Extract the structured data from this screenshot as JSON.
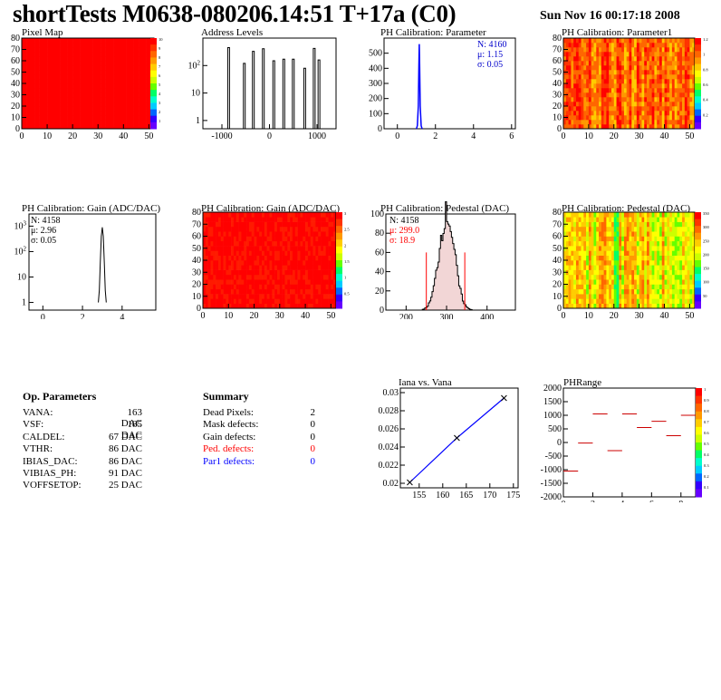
{
  "header": {
    "title": "shortTests M0638-080206.14:51 T+17a (C0)",
    "date": "Sun Nov 16 00:17:18 2008"
  },
  "colors": {
    "map_red": "#ff0000",
    "curve_blue": "#0000ff",
    "stat_red": "#ff0000",
    "stat_blue": "#0000cc",
    "ped_hatch": "#cc6666",
    "range_red": "#cc0000"
  },
  "parameters": {
    "title": "Op. Parameters",
    "rows": [
      {
        "name": "VANA:",
        "value": "163 DAC"
      },
      {
        "name": "VSF:",
        "value": "185 DAC"
      },
      {
        "name": "CALDEL:",
        "value": "67 DAC"
      },
      {
        "name": "VTHR:",
        "value": "86 DAC"
      },
      {
        "name": "IBIAS_DAC:",
        "value": "86 DAC"
      },
      {
        "name": "VIBIAS_PH:",
        "value": "91 DAC"
      },
      {
        "name": "VOFFSETOP:",
        "value": "25 DAC"
      }
    ]
  },
  "summary": {
    "title": "Summary",
    "rows": [
      {
        "name": "Dead Pixels:",
        "value": "2",
        "color": "#000000"
      },
      {
        "name": "Mask defects:",
        "value": "0",
        "color": "#000000"
      },
      {
        "name": "Gain defects:",
        "value": "0",
        "color": "#000000"
      },
      {
        "name": "Ped. defects:",
        "value": "0",
        "color": "#ff0000"
      },
      {
        "name": "Par1 defects:",
        "value": "0",
        "color": "#0000ff"
      }
    ]
  },
  "chart_data": [
    {
      "type": "heatmap",
      "title": "Pixel Map",
      "x_ticks": [
        "0",
        "10",
        "20",
        "30",
        "40",
        "50"
      ],
      "y_ticks": [
        "0",
        "10",
        "20",
        "30",
        "40",
        "50",
        "60",
        "70",
        "80"
      ],
      "xlim": [
        0,
        52
      ],
      "ylim": [
        0,
        80
      ],
      "uniform_value": 10,
      "z_ticks": [
        "10",
        "9",
        "8",
        "7",
        "6",
        "5",
        "4",
        "3",
        "2",
        "1"
      ]
    },
    {
      "type": "bar",
      "title": "Address Levels",
      "log_y": true,
      "x_ticks": [
        "-1000",
        "0",
        "1000"
      ],
      "y_ticks": [
        "1",
        "10",
        "10^2"
      ],
      "xlim": [
        -1400,
        1400
      ],
      "peaks_x": [
        -840,
        -510,
        -320,
        -110,
        110,
        320,
        520,
        760,
        960,
        1060
      ],
      "peaks_y": [
        450,
        120,
        330,
        410,
        150,
        170,
        170,
        80,
        420,
        160
      ]
    },
    {
      "type": "line",
      "title": "PH Calibration: Parameter",
      "x_ticks": [
        "0",
        "2",
        "4",
        "6"
      ],
      "y_ticks": [
        "0",
        "100",
        "200",
        "300",
        "400",
        "500"
      ],
      "xlim": [
        -0.7,
        6.2
      ],
      "ylim": [
        0,
        600
      ],
      "stats": {
        "n": "N: 4160",
        "mean": "μ: 1.15",
        "sigma": "σ: 0.05"
      },
      "x": [
        1.0,
        1.05,
        1.1,
        1.13,
        1.15,
        1.17,
        1.2,
        1.25,
        1.3
      ],
      "y": [
        0,
        20,
        150,
        420,
        560,
        420,
        150,
        20,
        0
      ]
    },
    {
      "type": "heatmap",
      "title": "PH Calibration: Parameter1",
      "x_ticks": [
        "0",
        "10",
        "20",
        "30",
        "40",
        "50"
      ],
      "y_ticks": [
        "0",
        "10",
        "20",
        "30",
        "40",
        "50",
        "60",
        "70",
        "80"
      ],
      "xlim": [
        0,
        52
      ],
      "ylim": [
        0,
        80
      ],
      "z_ticks": [
        "1.2",
        "1",
        "0.8",
        "0.6",
        "0.4",
        "0.2"
      ]
    },
    {
      "type": "line",
      "title": "PH Calibration: Gain (ADC/DAC)",
      "log_y": true,
      "x_ticks": [
        "0",
        "2",
        "4"
      ],
      "y_ticks": [
        "1",
        "10",
        "10^2",
        "10^3"
      ],
      "xlim": [
        -0.7,
        5.7
      ],
      "stats": {
        "n": "N: 4158",
        "mean": "μ: 2.96",
        "sigma": "σ: 0.05"
      },
      "x": [
        2.8,
        2.85,
        2.9,
        2.95,
        3.0,
        3.05,
        3.1,
        3.15,
        3.2
      ],
      "y": [
        1,
        3,
        40,
        400,
        900,
        400,
        40,
        3,
        1
      ]
    },
    {
      "type": "heatmap",
      "title": "PH Calibration: Gain (ADC/DAC)",
      "x_ticks": [
        "0",
        "10",
        "20",
        "30",
        "40",
        "50"
      ],
      "y_ticks": [
        "0",
        "10",
        "20",
        "30",
        "40",
        "50",
        "60",
        "70",
        "80"
      ],
      "xlim": [
        0,
        52
      ],
      "ylim": [
        0,
        80
      ],
      "z_ticks": [
        "3",
        "2.5",
        "2",
        "1.5",
        "1",
        "0.5"
      ]
    },
    {
      "type": "bar",
      "title": "PH Calibration: Pedestal (DAC)",
      "x_ticks": [
        "200",
        "300",
        "400"
      ],
      "y_ticks": [
        "0",
        "20",
        "40",
        "60",
        "80",
        "100"
      ],
      "xlim": [
        150,
        470
      ],
      "ylim": [
        0,
        100
      ],
      "stats": {
        "n": "N: 4158",
        "mean": "μ: 299.0",
        "sigma": "σ: 18.9"
      },
      "mean": 299.0,
      "sigma": 18.9,
      "peak": 100,
      "cut_lines_x": [
        250,
        345
      ],
      "cut_lines_height": 60
    },
    {
      "type": "heatmap",
      "title": "PH Calibration: Pedestal (DAC)",
      "x_ticks": [
        "0",
        "10",
        "20",
        "30",
        "40",
        "50"
      ],
      "y_ticks": [
        "0",
        "10",
        "20",
        "30",
        "40",
        "50",
        "60",
        "70",
        "80"
      ],
      "xlim": [
        0,
        52
      ],
      "ylim": [
        0,
        80
      ],
      "z_ticks": [
        "350",
        "300",
        "250",
        "200",
        "150",
        "100",
        "50"
      ]
    },
    {
      "type": "line",
      "title": "Iana vs. Vana",
      "x_ticks": [
        "155",
        "160",
        "165",
        "170",
        "175"
      ],
      "y_ticks": [
        "0.02",
        "0.022",
        "0.024",
        "0.026",
        "0.028",
        "0.03"
      ],
      "xlim": [
        151,
        176
      ],
      "ylim": [
        0.0195,
        0.0305
      ],
      "x": [
        153,
        163,
        173
      ],
      "y": [
        0.0201,
        0.025,
        0.0294
      ]
    },
    {
      "type": "scatter",
      "title": "PHRange",
      "x_ticks": [
        "0",
        "2",
        "4",
        "6",
        "8"
      ],
      "y_ticks": [
        "2000",
        "1500",
        "1000",
        "500",
        "0",
        "-500",
        "-1000",
        "-1500",
        "-2000"
      ],
      "xlim": [
        0,
        9
      ],
      "ylim": [
        -2000,
        2000
      ],
      "z_ticks": [
        "1",
        "0.9",
        "0.8",
        "0.7",
        "0.6",
        "0.5",
        "0.4",
        "0.3",
        "0.2",
        "0.1"
      ],
      "x": [
        0,
        1,
        2,
        3,
        4,
        5,
        6,
        7,
        8
      ],
      "y": [
        -1050,
        -20,
        1050,
        -300,
        1050,
        550,
        780,
        250,
        1000
      ]
    }
  ]
}
